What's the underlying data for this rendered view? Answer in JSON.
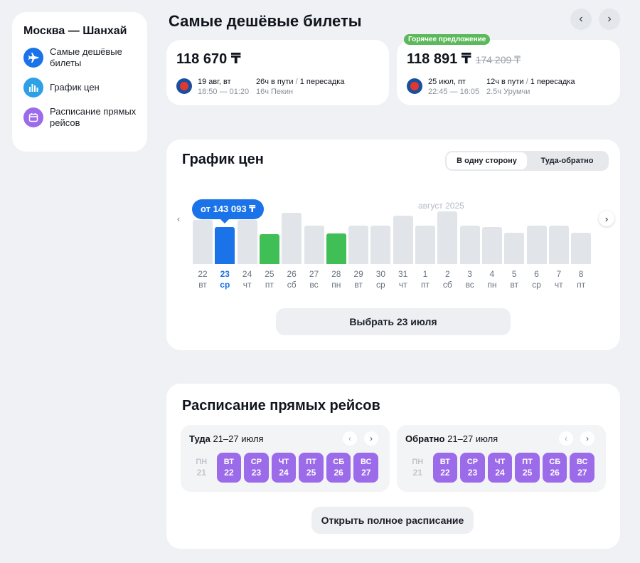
{
  "sidebar": {
    "route": "Москва — Шанхай",
    "items": [
      {
        "label": "Самые дешёвые билеты",
        "icon": "plane-icon",
        "color": "#1a73e8"
      },
      {
        "label": "График цен",
        "icon": "chart-icon",
        "color": "#2ea0e6"
      },
      {
        "label": "Расписание прямых рейсов",
        "icon": "calendar-icon",
        "color": "#9b6bea"
      }
    ]
  },
  "cheapest": {
    "title": "Самые дешёвые билеты",
    "tickets": [
      {
        "price": "118 670 ₸",
        "date": "19 авг, вт",
        "time": "18:50 — 01:20",
        "duration": "26ч в пути",
        "stops": "1 пересадка",
        "via": "16ч Пекин"
      },
      {
        "badge": "Горячее предложение",
        "price": "118 891 ₸",
        "old_price": "174 209 ₸",
        "date": "25 июл, пт",
        "time": "22:45 — 16:05",
        "duration": "12ч в пути",
        "stops": "1 пересадка",
        "via": "2.5ч Урумчи"
      }
    ]
  },
  "chart": {
    "title": "График цен",
    "toggle": [
      "В одну сторону",
      "Туда-обратно"
    ],
    "month_label": "август 2025",
    "tooltip": "от 143 093 ₸",
    "select_button": "Выбрать 23 июля"
  },
  "chart_data": {
    "type": "bar",
    "categories": [
      "22 вт",
      "23 ср",
      "24 чт",
      "25 пт",
      "26 сб",
      "27 вс",
      "28 пн",
      "29 вт",
      "30 ср",
      "31 чт",
      "1 пт",
      "2 сб",
      "3 вс",
      "4 пн",
      "5 вт",
      "6 ср",
      "7 чт",
      "8 пт"
    ],
    "days": [
      "22",
      "23",
      "24",
      "25",
      "26",
      "27",
      "28",
      "29",
      "30",
      "31",
      "1",
      "2",
      "3",
      "4",
      "5",
      "6",
      "7",
      "8"
    ],
    "weekdays": [
      "вт",
      "ср",
      "чт",
      "пт",
      "сб",
      "вс",
      "пн",
      "вт",
      "ср",
      "чт",
      "пт",
      "сб",
      "вс",
      "пн",
      "вт",
      "ср",
      "чт",
      "пт"
    ],
    "values": [
      62,
      52,
      62,
      42,
      72,
      54,
      43,
      54,
      54,
      68,
      54,
      74,
      54,
      52,
      44,
      54,
      54,
      44
    ],
    "bar_colors": [
      "#e1e4e9",
      "#1a73e8",
      "#e1e4e9",
      "#3fbf55",
      "#e1e4e9",
      "#e1e4e9",
      "#3fbf55",
      "#e1e4e9",
      "#e1e4e9",
      "#e1e4e9",
      "#e1e4e9",
      "#e1e4e9",
      "#e1e4e9",
      "#e1e4e9",
      "#e1e4e9",
      "#e1e4e9",
      "#e1e4e9",
      "#e1e4e9"
    ],
    "selected_index": 1
  },
  "schedule": {
    "title": "Расписание прямых рейсов",
    "open_button": "Открыть полное расписание",
    "panels": [
      {
        "dir": "Туда",
        "range": "21–27 июля",
        "days": [
          {
            "wd": "ПН",
            "d": "21",
            "active": false
          },
          {
            "wd": "ВТ",
            "d": "22",
            "active": true
          },
          {
            "wd": "СР",
            "d": "23",
            "active": true
          },
          {
            "wd": "ЧТ",
            "d": "24",
            "active": true
          },
          {
            "wd": "ПТ",
            "d": "25",
            "active": true
          },
          {
            "wd": "СБ",
            "d": "26",
            "active": true
          },
          {
            "wd": "ВС",
            "d": "27",
            "active": true
          }
        ]
      },
      {
        "dir": "Обратно",
        "range": "21–27 июля",
        "days": [
          {
            "wd": "ПН",
            "d": "21",
            "active": false
          },
          {
            "wd": "ВТ",
            "d": "22",
            "active": true
          },
          {
            "wd": "СР",
            "d": "23",
            "active": true
          },
          {
            "wd": "ЧТ",
            "d": "24",
            "active": true
          },
          {
            "wd": "ПТ",
            "d": "25",
            "active": true
          },
          {
            "wd": "СБ",
            "d": "26",
            "active": true
          },
          {
            "wd": "ВС",
            "d": "27",
            "active": true
          }
        ]
      }
    ]
  }
}
